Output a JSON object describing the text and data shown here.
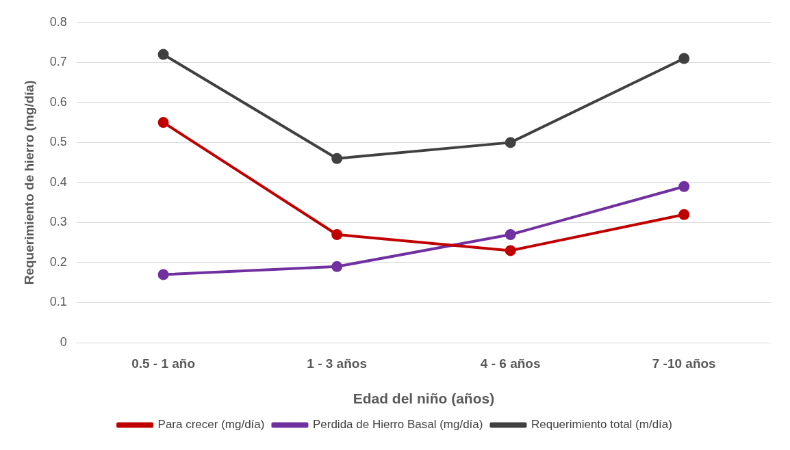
{
  "chart_data": {
    "type": "line",
    "xlabel": "Edad del niño (años)",
    "ylabel": "Requerimiento de hierro (mg/día)",
    "categories": [
      "0.5 - 1 año",
      "1 - 3 años",
      "4 - 6 años",
      "7 -10 años"
    ],
    "series": [
      {
        "name": "Para crecer (mg/día)",
        "color": "#c00000",
        "values": [
          0.55,
          0.27,
          0.23,
          0.32
        ]
      },
      {
        "name": "Perdida de Hierro Basal (mg/día)",
        "color": "#7030a0",
        "values": [
          0.17,
          0.19,
          0.27,
          0.39
        ]
      },
      {
        "name": "Requerimiento total (m/día)",
        "color": "#404040",
        "values": [
          0.72,
          0.46,
          0.5,
          0.71
        ]
      }
    ],
    "ylim": [
      0,
      0.8
    ],
    "yticks": [
      0,
      0.1,
      0.2,
      0.3,
      0.4,
      0.5,
      0.6,
      0.7,
      0.8
    ],
    "grid": "y",
    "legend": "bottom",
    "marker": "circle",
    "line_style": "solid"
  }
}
